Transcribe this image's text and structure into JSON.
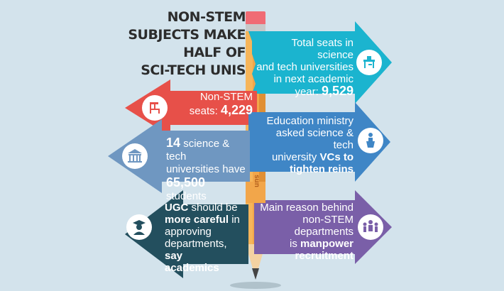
{
  "title": {
    "line1": "NON-STEM",
    "line2": "SUBJECTS MAKE",
    "line3": "HALF OF",
    "line4": "SCI-TECH UNIS"
  },
  "arrow_1": {
    "line1": "Total seats in science",
    "line2": "and tech universities",
    "line3": "in next academic",
    "line4_pre": "year: ",
    "line4_bold": "9,529",
    "icon": "desk-chair-icon",
    "color": "#1bb4cf"
  },
  "arrow_2": {
    "line1": "Non-STEM",
    "line2_pre": "seats: ",
    "line2_bold": "4,229",
    "icon": "chair-icon",
    "color": "#e75049"
  },
  "arrow_3": {
    "line1": "Education ministry",
    "line2": "asked science & tech",
    "line3_pre": "university ",
    "line3_bold": "VCs to",
    "line4_bold": "tighten reins",
    "icon": "podium-speaker-icon",
    "color": "#3f86c6"
  },
  "arrow_4": {
    "line1_bold": "14",
    "line1_post": " science & tech",
    "line2": "universities have",
    "line3_bold": "65,500",
    "line3_post": " students",
    "icon": "university-building-icon",
    "color": "#6f97c1"
  },
  "arrow_5": {
    "line1": "Main reason behind",
    "line2": "non-STEM departments",
    "line3_pre": "is ",
    "line3_bold": "manpower",
    "line4_bold": "recruitment",
    "icon": "people-group-icon",
    "color": "#7a5fa8"
  },
  "arrow_6": {
    "line1_bold": "UGC",
    "line1_post": " should be",
    "line2_bold": "more careful",
    "line2_post": " in",
    "line3": "approving",
    "line4_pre": "departments, ",
    "line4_bold": "say",
    "line5_bold": "academics",
    "icon": "graduate-icon",
    "color": "#234f5e"
  },
  "pencil_brand": "sun",
  "colors": {
    "background": "#d3e3ec",
    "pencil": "#f2a64a",
    "eraser": "#f06b74"
  }
}
